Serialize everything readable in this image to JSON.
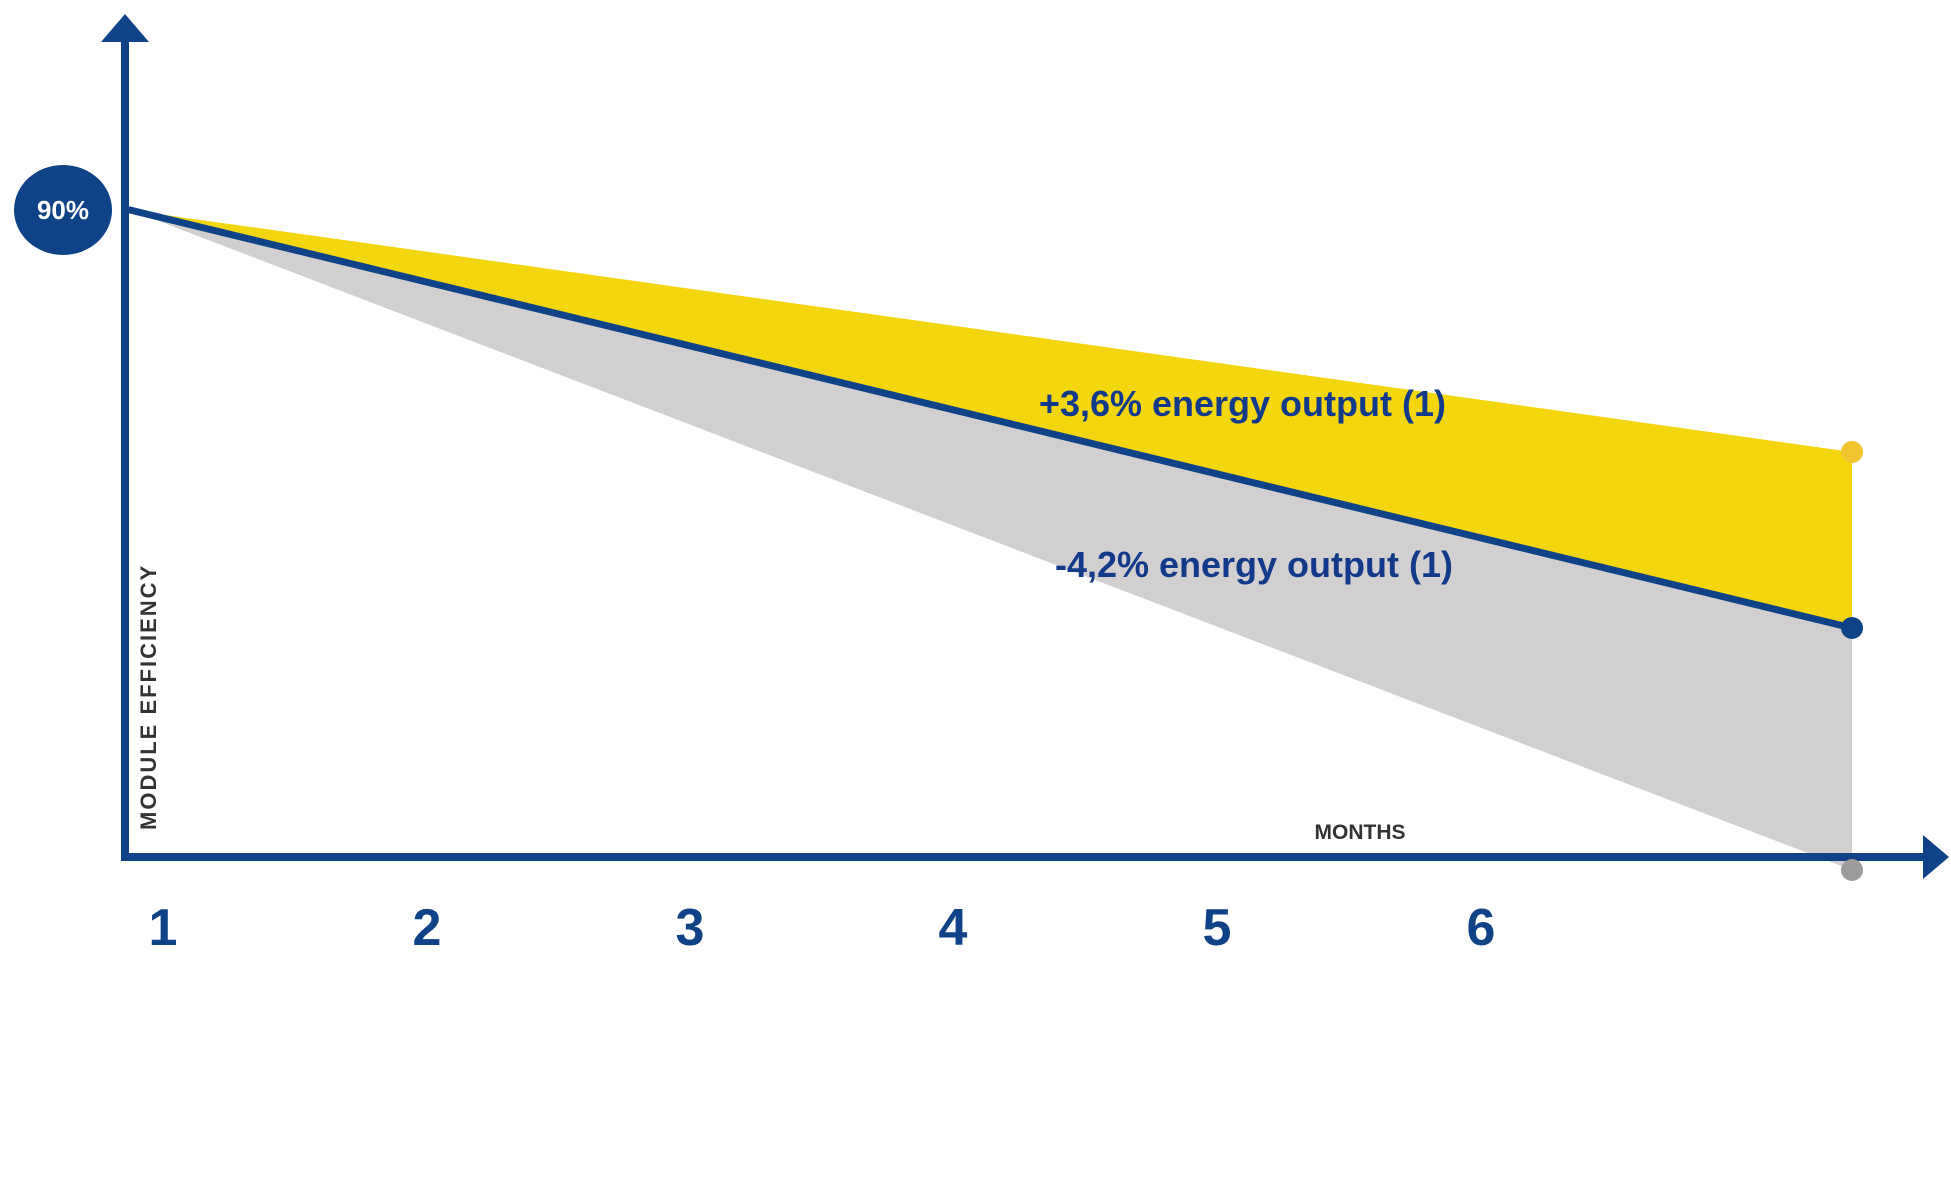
{
  "colors": {
    "axis": "#0f4286",
    "baseline_line": "#0f4286",
    "upper_fill": "#f4d60f",
    "lower_fill": "#d1cfd0",
    "upper_marker": "#f0c52f",
    "lower_marker": "#9d9b9c",
    "text_dark": "#333333",
    "badge_text": "#ffffff",
    "annotation_text": "#123a8a"
  },
  "chart_data": {
    "type": "area",
    "xlabel": "MONTHS",
    "ylabel": "MODULE EFFICIENCY",
    "x_ticks": [
      "1",
      "2",
      "3",
      "4",
      "5",
      "6"
    ],
    "xlim": [
      1,
      6
    ],
    "start_label": "90%",
    "series": [
      {
        "x": [
          1,
          6
        ],
        "y": [
          90,
          85.6
        ]
      },
      {
        "x": [
          1,
          6
        ],
        "y": [
          90,
          82.4
        ]
      },
      {
        "x": [
          1,
          6
        ],
        "y": [
          90,
          78.0
        ]
      }
    ],
    "annotations": [
      {
        "text": "+3,6% energy output (1)"
      },
      {
        "text": "-4,2% energy output (1)"
      }
    ]
  }
}
